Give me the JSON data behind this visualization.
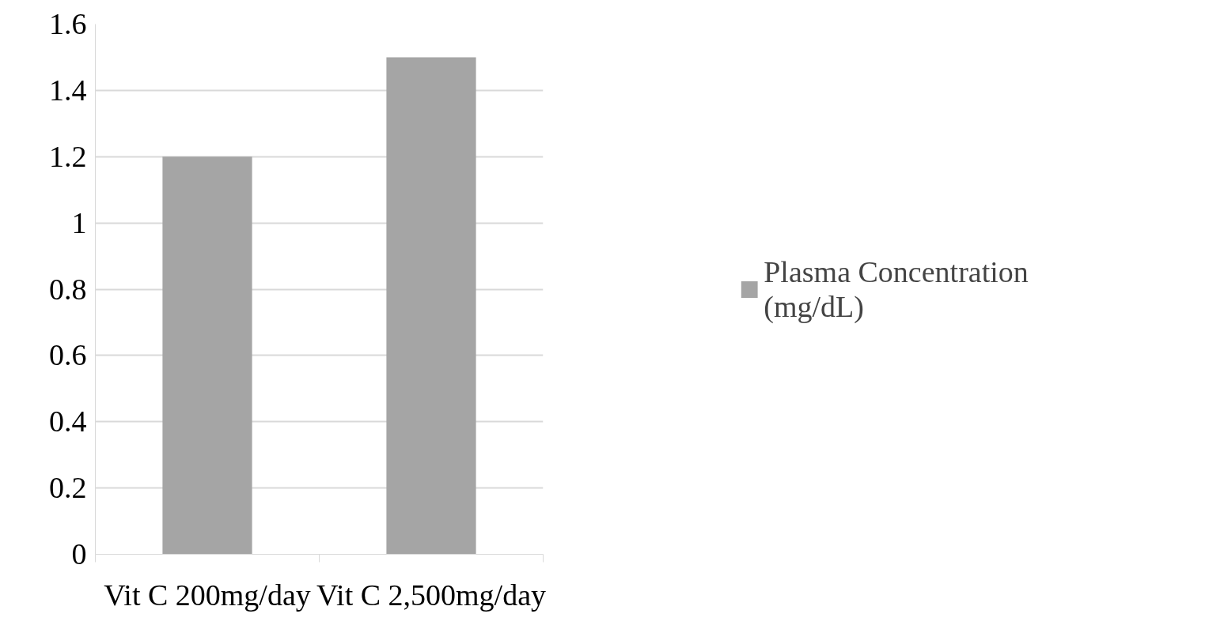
{
  "chart_data": {
    "type": "bar",
    "categories": [
      "Vit C 200mg/day",
      "Vit C 2,500mg/day"
    ],
    "series": [
      {
        "name": "Plasma Concentration (mg/dL)",
        "color": "#a5a5a5",
        "values": [
          1.2,
          1.5
        ]
      }
    ],
    "ylim": [
      0,
      1.6
    ],
    "yticks": [
      0,
      0.2,
      0.4,
      0.6,
      0.8,
      1,
      1.2,
      1.4,
      1.6
    ],
    "grid": "y",
    "legend": "right"
  }
}
